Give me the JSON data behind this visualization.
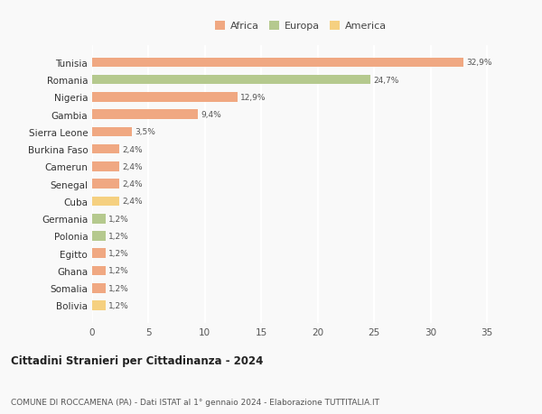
{
  "countries": [
    "Tunisia",
    "Romania",
    "Nigeria",
    "Gambia",
    "Sierra Leone",
    "Burkina Faso",
    "Camerun",
    "Senegal",
    "Cuba",
    "Germania",
    "Polonia",
    "Egitto",
    "Ghana",
    "Somalia",
    "Bolivia"
  ],
  "values": [
    32.9,
    24.7,
    12.9,
    9.4,
    3.5,
    2.4,
    2.4,
    2.4,
    2.4,
    1.2,
    1.2,
    1.2,
    1.2,
    1.2,
    1.2
  ],
  "continents": [
    "Africa",
    "Europa",
    "Africa",
    "Africa",
    "Africa",
    "Africa",
    "Africa",
    "Africa",
    "America",
    "Europa",
    "Europa",
    "Africa",
    "Africa",
    "Africa",
    "America"
  ],
  "colors": {
    "Africa": "#F0A882",
    "Europa": "#B5C98E",
    "America": "#F5D080"
  },
  "labels": [
    "32,9%",
    "24,7%",
    "12,9%",
    "9,4%",
    "3,5%",
    "2,4%",
    "2,4%",
    "2,4%",
    "2,4%",
    "1,2%",
    "1,2%",
    "1,2%",
    "1,2%",
    "1,2%",
    "1,2%"
  ],
  "xlim": [
    0,
    37
  ],
  "xticks": [
    0,
    5,
    10,
    15,
    20,
    25,
    30,
    35
  ],
  "title": "Cittadini Stranieri per Cittadinanza - 2024",
  "subtitle": "COMUNE DI ROCCAMENA (PA) - Dati ISTAT al 1° gennaio 2024 - Elaborazione TUTTITALIA.IT",
  "legend_labels": [
    "Africa",
    "Europa",
    "America"
  ],
  "background_color": "#f9f9f9",
  "grid_color": "#ffffff",
  "bar_height": 0.55
}
